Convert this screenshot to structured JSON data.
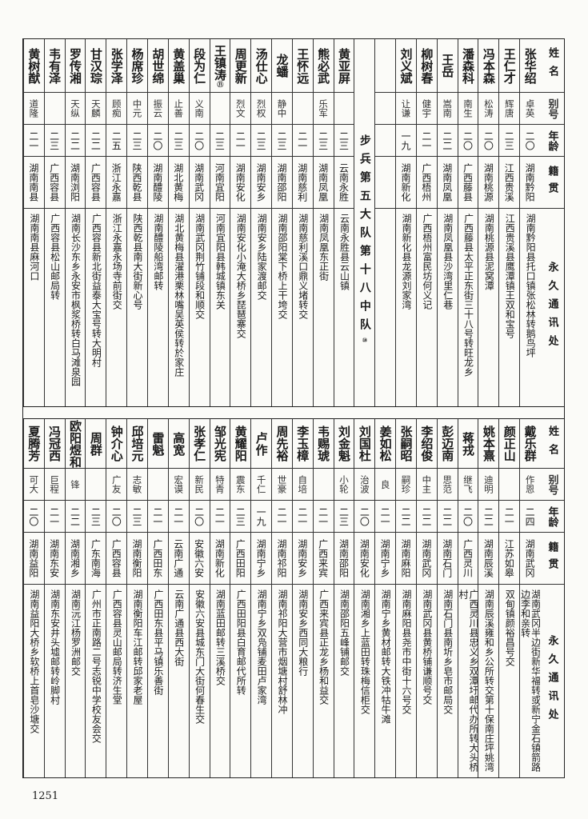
{
  "headers": {
    "name": "姓名",
    "alias": "别号",
    "age": "年龄",
    "native": "籍贯",
    "address": "永久通讯处"
  },
  "section_title": "步兵第五大队第十八中队",
  "section_note": "⑩",
  "top": [
    {
      "name": "张华绍",
      "alias": "卓英",
      "age": "二〇",
      "native": "湖南黔阳",
      "address": "湖南黔阳县托口镇张松林转鹅鸟坪"
    },
    {
      "name": "王仁才",
      "alias": "辉唐",
      "age": "二三",
      "native": "江西贵溪",
      "address": "江西贵溪县鹰潭镇王双和宝号"
    },
    {
      "name": "冯本森",
      "alias": "松涛",
      "age": "二〇",
      "native": "湖南桃源",
      "address": "湖南桃源县泥窝潭"
    },
    {
      "name": "潘森科",
      "alias": "南生",
      "age": "二〇",
      "native": "广西藤县",
      "address": "广西藤县太平正东街三十八号转旺龙乡"
    },
    {
      "name": "王岳",
      "alias": "嵩南",
      "age": "二二",
      "native": "湖南凤凰",
      "address": "湖南凤凰县沙湾里仁巷"
    },
    {
      "name": "柳树春",
      "alias": "健宇",
      "age": "二一",
      "native": "广西梧州",
      "address": "广西梧州富民坊何义记"
    },
    {
      "name": "刘义斌",
      "alias": "让谦",
      "age": "一九",
      "native": "湖南新化",
      "address": "湖南新化县龙源刘家湾"
    },
    {
      "blank": true
    },
    {
      "section": true
    },
    {
      "name": "黄亚屏",
      "alias": "",
      "age": "二三",
      "native": "云南永胜",
      "address": "云南永胜县云山镇"
    },
    {
      "name": "熊必武",
      "alias": "乐军",
      "age": "二三",
      "native": "湖南凤凰",
      "address": "湖南凤凰东正街"
    },
    {
      "name": "王怀远",
      "alias": "",
      "age": "二一",
      "native": "湖南慈利",
      "address": "湖南慈利溪口鼎义堵转交"
    },
    {
      "name": "龙蟠",
      "alias": "静中",
      "age": "二三",
      "native": "湖南邵阳",
      "address": "湖南邵阳棠下桥上干垮交"
    },
    {
      "name": "汤仕心",
      "alias": "烈权",
      "age": "二三",
      "native": "湖南安乡",
      "address": "湖南安乡陆家渡邮交"
    },
    {
      "name": "周更新",
      "alias": "烈文",
      "age": "二一",
      "native": "湖南安化",
      "address": "湖南安化小淹大桥乡琵琶寨交"
    },
    {
      "name": "王镇涛",
      "note": "⑪",
      "alias": "",
      "age": "二三",
      "native": "河南宜阳",
      "address": "河南宜阳县韩城镇东关"
    },
    {
      "name": "段为仁",
      "alias": "义南",
      "age": "二〇",
      "native": "湖南武冈",
      "address": "湖南武冈荆竹铺段和顺交"
    },
    {
      "name": "黄盖巢",
      "alias": "止善",
      "age": "二三",
      "native": "湖北黄梅",
      "address": "湖北黄梅县濯港栗林嘴吴英侯转於家庄"
    },
    {
      "name": "胡世绵",
      "alias": "振云",
      "age": "二〇",
      "native": "湖南醴陵",
      "address": "湖南醴陵船湾邮转"
    },
    {
      "name": "杨席珍",
      "alias": "中元",
      "age": "二三",
      "native": "陕西乾县",
      "address": "陕西乾县南大街新心号"
    },
    {
      "name": "张学泽",
      "alias": "顾痴",
      "age": "二五",
      "native": "浙江永嘉",
      "address": "浙江永嘉永场寺前街交"
    },
    {
      "name": "甘汉琮",
      "alias": "天麟",
      "age": "二二",
      "native": "广西容县",
      "address": "广西容县新北街益泰大宝号转大明村"
    },
    {
      "name": "罗传湘",
      "alias": "天纵",
      "age": "二二",
      "native": "湖南浏阳",
      "address": "湖南长沙东乡永安市枫浆桥转白马滩泉园"
    },
    {
      "name": "韦有泽",
      "alias": "",
      "age": "二三",
      "native": "广西容县",
      "address": "广西容县松山邮局转"
    },
    {
      "name": "黄树猷",
      "alias": "道隆",
      "age": "二一",
      "native": "湖南南县",
      "address": "湖南南县麻河口"
    }
  ],
  "bottom": [
    {
      "name": "戴乐群",
      "alias": "作恩",
      "age": "二四",
      "native": "湖南武冈",
      "address": "湖南武冈半边街新华福转或新宁金石镇箭路边李和亲转"
    },
    {
      "name": "颜正山",
      "alias": "",
      "age": "二一",
      "native": "江苏如皋",
      "address": "双甸镇颜裕昌号交"
    },
    {
      "name": "姚本熹",
      "alias": "迪明",
      "age": "二二",
      "native": "湖南辰溪",
      "address": "湖南辰溪雍和乡公所转交第十保南庄坪姚湾"
    },
    {
      "name": "蒋戎",
      "alias": "继飞",
      "age": "二〇",
      "native": "广西灵川",
      "address": "广西灵川县忠义乡双潭圩邮代办所转大头桥村"
    },
    {
      "name": "彭迈南",
      "alias": "思范",
      "age": "二二",
      "native": "湖南石门",
      "address": "湖南石门县南圻乡皂市邮局交"
    },
    {
      "name": "李绍俊",
      "alias": "中主",
      "age": "二二",
      "native": "湖南武冈",
      "address": "湖南武冈县黄桥铺谦顺号交"
    },
    {
      "name": "张嗣昭",
      "alias": "嗣珍",
      "age": "二二",
      "native": "湖南麻阳",
      "address": "湖南麻阳县尧市中街十六号交"
    },
    {
      "name": "姜如松",
      "alias": "良",
      "age": "二一",
      "native": "湖南宁乡",
      "address": "湖南宁乡黄材邮转大铁冲牯牛滩"
    },
    {
      "name": "刘国杜",
      "alias": "治波",
      "age": "二〇",
      "native": "湖南安化",
      "address": "湖南湘乡上蓝田转珠梅信柜交"
    },
    {
      "name": "刘金魁",
      "alias": "小轮",
      "age": "二三",
      "native": "湖南邵阳",
      "address": "湖南邵阳五峰铺邮交"
    },
    {
      "name": "韦赐琥",
      "alias": "",
      "age": "二一",
      "native": "广西来宾",
      "address": "广西来宾县正龙乡杨和益交"
    },
    {
      "name": "李玉樟",
      "alias": "自培",
      "age": "二一",
      "native": "湖南安乡",
      "address": "湖南安乡西同大粮行"
    },
    {
      "name": "周先裕",
      "alias": "世豪",
      "age": "二一",
      "native": "湖南祁阳",
      "address": "湖南祁阳大营市烟塘村舒林冲"
    },
    {
      "name": "卢作",
      "alias": "千仁",
      "age": "一九",
      "native": "湖南宁乡",
      "address": "湖南宁乡双凫铺麦田卢家湾"
    },
    {
      "name": "黄耀阳",
      "alias": "震东",
      "age": "二三",
      "native": "广西田阳",
      "address": "广西田阳县白育邮代所转"
    },
    {
      "name": "邹光宪",
      "alias": "特青",
      "age": "二一",
      "native": "湖南新化",
      "address": "湖南蓝田邮转三溪桥交"
    },
    {
      "name": "张孝仁",
      "alias": "新民",
      "age": "二〇",
      "native": "安徽六安",
      "address": "安徽六安县城东门大街何春生交"
    },
    {
      "name": "高宽",
      "alias": "宏谟",
      "age": "二一",
      "native": "云南广通",
      "address": "云南广通县西大街"
    },
    {
      "name": "雷魁",
      "alias": "",
      "age": "二一",
      "native": "广西田东",
      "address": "广西田东县平马镇乐善街"
    },
    {
      "name": "邱培元",
      "alias": "志敏",
      "age": "二三",
      "native": "湖南衡阳",
      "address": "湖南衡阳车江邮转邱家老屋"
    },
    {
      "name": "钟介心",
      "alias": "广友",
      "age": "二〇",
      "native": "广西容县",
      "address": "广西容县灵山邮局转济生堂"
    },
    {
      "name": "周群",
      "alias": "",
      "age": "二三",
      "native": "广东南海",
      "address": "广州市正南路二号志锐中学校友会交"
    },
    {
      "name": "欧阳煜和",
      "alias": "锋",
      "age": "二二",
      "native": "湖南湘乡",
      "address": "湖南沅江杨罗洲邮交"
    },
    {
      "name": "冯冠西",
      "alias": "巨程",
      "age": "二一",
      "native": "湖南东安",
      "address": "湖南东安井头墟邮转岭脚村"
    },
    {
      "name": "夏腾芳",
      "alias": "可大",
      "age": "二〇",
      "native": "湖南益阳",
      "address": "湖南益阳大桥乡软桥上首皂沙塘交"
    }
  ],
  "page_number": "1251"
}
